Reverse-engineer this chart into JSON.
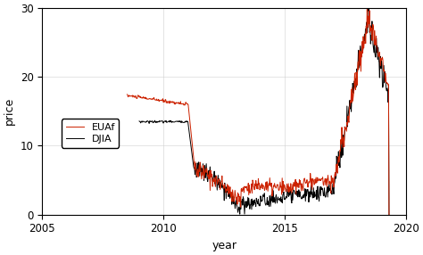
{
  "xlabel": "year",
  "ylabel": "price",
  "xlim": [
    2005,
    2020
  ],
  "ylim": [
    0,
    30
  ],
  "yticks": [
    0,
    10,
    20,
    30
  ],
  "xticks": [
    2005,
    2010,
    2015,
    2020
  ],
  "euaf_color": "#cc2200",
  "djia_color": "#000000",
  "legend_labels": [
    "EUAf",
    "DJIA"
  ],
  "linewidth": 0.7,
  "figsize": [
    4.74,
    2.86
  ],
  "dpi": 100
}
